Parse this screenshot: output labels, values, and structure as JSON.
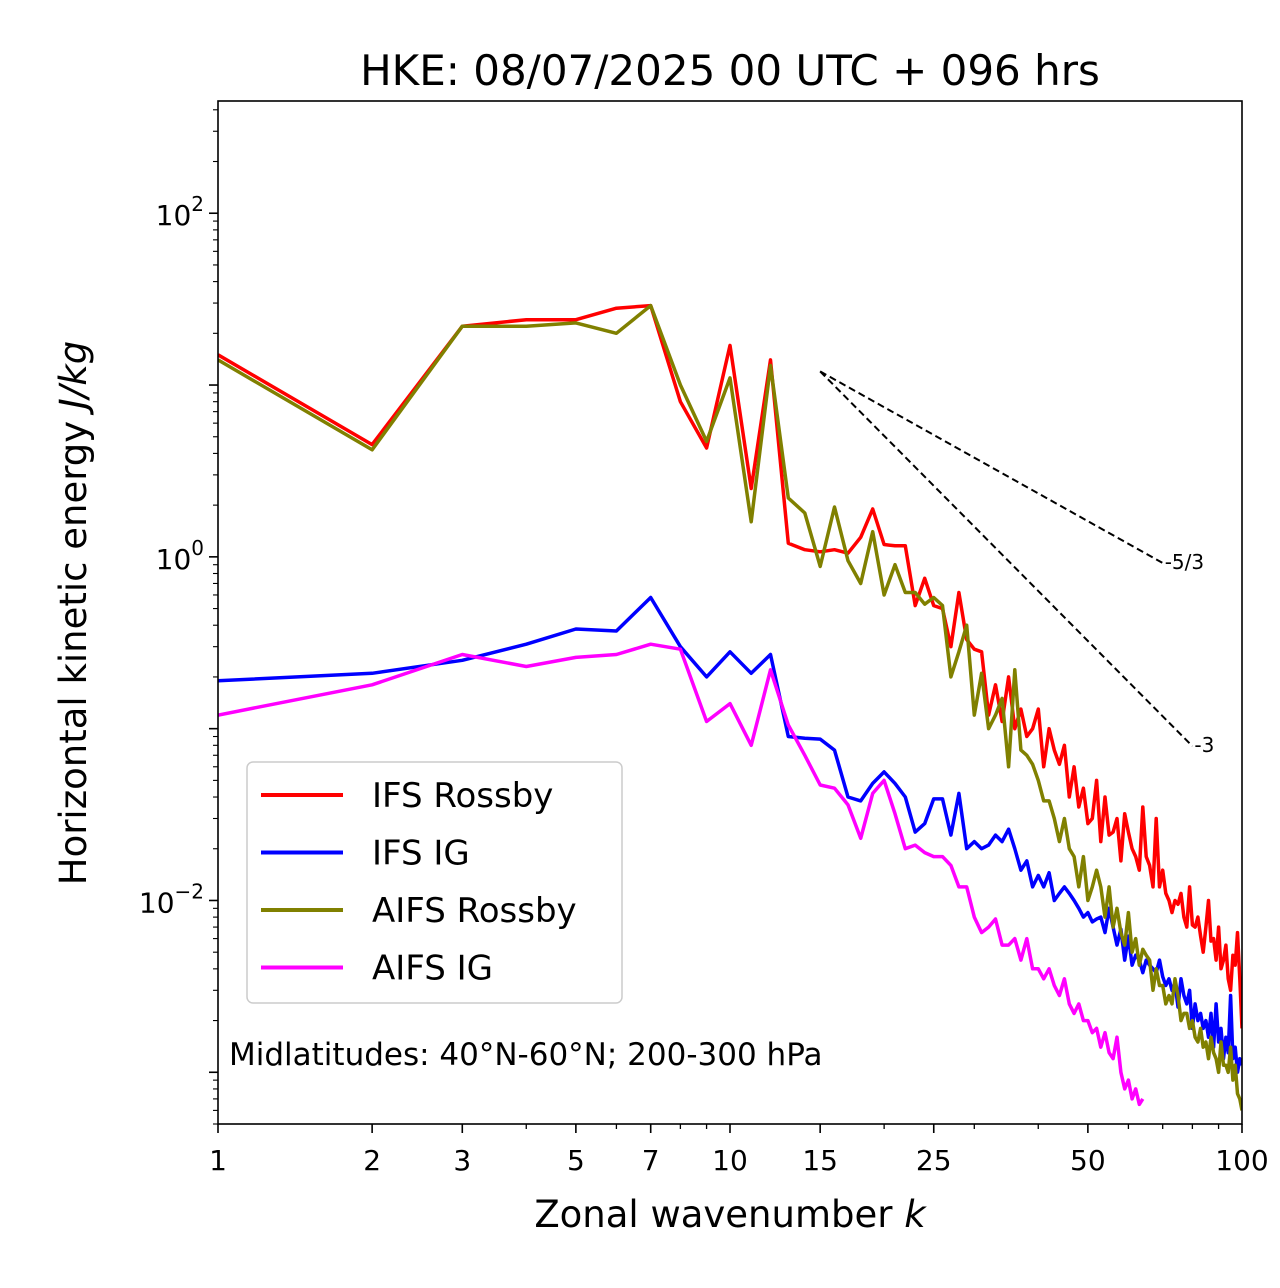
{
  "chart_data": {
    "type": "line",
    "title": "HKE: 08/07/2025 00 UTC + 096 hrs",
    "xlabel": "Zonal wavenumber",
    "xlabel_var": "k",
    "ylabel": "Horizontal kinetic energy",
    "ylabel_unit": "J/kg",
    "xscale": "log",
    "yscale": "log",
    "xlim": [
      1,
      100
    ],
    "ylim": [
      0.0005,
      450
    ],
    "xticks": [
      1,
      2,
      3,
      5,
      7,
      10,
      15,
      25,
      50,
      100
    ],
    "xtick_labels": [
      "1",
      "2",
      "3",
      "5",
      "7",
      "10",
      "15",
      "25",
      "50",
      "100"
    ],
    "yticks": [
      {
        "value": 100,
        "base": "10",
        "exp": "2"
      },
      {
        "value": 1,
        "base": "10",
        "exp": "0"
      },
      {
        "value": 0.01,
        "base": "10",
        "exp": "−2"
      }
    ],
    "grid": false,
    "legend_position": "lower-left",
    "annotation": "Midlatitudes: 40°N-60°N; 200-300 hPa",
    "reference_slopes": [
      {
        "label": "-5/3",
        "exponent": -1.6667,
        "x_start": 15,
        "x_end": 70,
        "y_start": 12.0
      },
      {
        "label": "-3",
        "exponent": -3,
        "x_start": 15,
        "x_end": 80,
        "y_start": 12.0
      }
    ],
    "series": [
      {
        "name": "IFS Rossby",
        "color": "#ff0000",
        "x": [
          1,
          2,
          3,
          4,
          5,
          6,
          7,
          8,
          9,
          10,
          11,
          12,
          13,
          14,
          15,
          16,
          17,
          18,
          19,
          20,
          21,
          22,
          23,
          24,
          25,
          26,
          27,
          28,
          29,
          30,
          31,
          32,
          33,
          34,
          35,
          36,
          37,
          38,
          39,
          40,
          41,
          42,
          43,
          44,
          45,
          46,
          47,
          48,
          49,
          50,
          51,
          52,
          53,
          54,
          55,
          56,
          57,
          58,
          59,
          60,
          61,
          62,
          63,
          64,
          65,
          66,
          67,
          68,
          69,
          70,
          71,
          72,
          73,
          74,
          75,
          76,
          77,
          78,
          79,
          80,
          81,
          82,
          83,
          84,
          85,
          86,
          87,
          88,
          89,
          90,
          91,
          92,
          93,
          94,
          95,
          96,
          97,
          98,
          99,
          100
        ],
        "y": [
          15,
          4.5,
          22,
          24,
          24,
          28,
          29,
          8,
          4.3,
          17,
          2.5,
          14,
          1.2,
          1.1,
          1.07,
          1.1,
          1.05,
          1.3,
          1.9,
          1.18,
          1.16,
          1.16,
          0.52,
          0.75,
          0.52,
          0.5,
          0.3,
          0.62,
          0.33,
          0.29,
          0.28,
          0.12,
          0.18,
          0.11,
          0.2,
          0.1,
          0.13,
          0.09,
          0.1,
          0.13,
          0.06,
          0.1,
          0.075,
          0.062,
          0.08,
          0.04,
          0.06,
          0.035,
          0.045,
          0.028,
          0.03,
          0.05,
          0.022,
          0.04,
          0.024,
          0.025,
          0.03,
          0.017,
          0.032,
          0.025,
          0.02,
          0.018,
          0.015,
          0.035,
          0.018,
          0.016,
          0.012,
          0.03,
          0.012,
          0.015,
          0.011,
          0.01,
          0.0085,
          0.01,
          0.0095,
          0.011,
          0.008,
          0.007,
          0.012,
          0.0072,
          0.007,
          0.008,
          0.0062,
          0.005,
          0.007,
          0.01,
          0.0058,
          0.006,
          0.0045,
          0.007,
          0.004,
          0.0045,
          0.0055,
          0.0035,
          0.003,
          0.0048,
          0.0042,
          0.0065,
          0.0035,
          0.0018
        ]
      },
      {
        "name": "IFS IG",
        "color": "#0000ff",
        "x": [
          1,
          2,
          3,
          4,
          5,
          6,
          7,
          8,
          9,
          10,
          11,
          12,
          13,
          14,
          15,
          16,
          17,
          18,
          19,
          20,
          21,
          22,
          23,
          24,
          25,
          26,
          27,
          28,
          29,
          30,
          31,
          32,
          33,
          34,
          35,
          36,
          37,
          38,
          39,
          40,
          41,
          42,
          43,
          44,
          45,
          46,
          47,
          48,
          49,
          50,
          51,
          52,
          53,
          54,
          55,
          56,
          57,
          58,
          59,
          60,
          61,
          62,
          63,
          64,
          65,
          66,
          67,
          68,
          69,
          70,
          71,
          72,
          73,
          74,
          75,
          76,
          77,
          78,
          79,
          80,
          81,
          82,
          83,
          84,
          85,
          86,
          87,
          88,
          89,
          90,
          91,
          92,
          93,
          94,
          95,
          96,
          97,
          98,
          99,
          100
        ],
        "y": [
          0.19,
          0.21,
          0.25,
          0.31,
          0.38,
          0.37,
          0.58,
          0.3,
          0.2,
          0.28,
          0.21,
          0.27,
          0.09,
          0.088,
          0.087,
          0.075,
          0.04,
          0.038,
          0.048,
          0.056,
          0.048,
          0.04,
          0.025,
          0.028,
          0.039,
          0.039,
          0.024,
          0.042,
          0.02,
          0.022,
          0.02,
          0.021,
          0.024,
          0.022,
          0.026,
          0.02,
          0.015,
          0.017,
          0.012,
          0.014,
          0.012,
          0.0145,
          0.01,
          0.011,
          0.012,
          0.011,
          0.01,
          0.009,
          0.008,
          0.0085,
          0.0075,
          0.0078,
          0.008,
          0.0065,
          0.009,
          0.007,
          0.0055,
          0.0068,
          0.0045,
          0.0062,
          0.0042,
          0.0048,
          0.0045,
          0.0038,
          0.0045,
          0.0042,
          0.004,
          0.0038,
          0.0045,
          0.0036,
          0.0032,
          0.0035,
          0.003,
          0.0033,
          0.0024,
          0.0035,
          0.0028,
          0.0025,
          0.003,
          0.0018,
          0.0025,
          0.002,
          0.0022,
          0.0018,
          0.002,
          0.0016,
          0.0022,
          0.0014,
          0.0025,
          0.0015,
          0.0018,
          0.0012,
          0.0016,
          0.0013,
          0.0028,
          0.0012,
          0.0014,
          0.001,
          0.0012,
          0.0011
        ]
      },
      {
        "name": "AIFS Rossby",
        "color": "#808000",
        "x": [
          1,
          2,
          3,
          4,
          5,
          6,
          7,
          8,
          9,
          10,
          11,
          12,
          13,
          14,
          15,
          16,
          17,
          18,
          19,
          20,
          21,
          22,
          23,
          24,
          25,
          26,
          27,
          28,
          29,
          30,
          31,
          32,
          33,
          34,
          35,
          36,
          37,
          38,
          39,
          40,
          41,
          42,
          43,
          44,
          45,
          46,
          47,
          48,
          49,
          50,
          51,
          52,
          53,
          54,
          55,
          56,
          57,
          58,
          59,
          60,
          61,
          62,
          63,
          64,
          65,
          66,
          67,
          68,
          69,
          70,
          71,
          72,
          73,
          74,
          75,
          76,
          77,
          78,
          79,
          80,
          81,
          82,
          83,
          84,
          85,
          86,
          87,
          88,
          89,
          90,
          91,
          92,
          93,
          94,
          95,
          96,
          97,
          98,
          99,
          100
        ],
        "y": [
          14,
          4.2,
          22,
          22,
          23,
          20,
          29,
          10,
          4.7,
          11,
          1.6,
          13,
          2.2,
          1.8,
          0.88,
          1.95,
          0.95,
          0.7,
          1.4,
          0.6,
          0.9,
          0.62,
          0.62,
          0.53,
          0.58,
          0.52,
          0.2,
          0.28,
          0.4,
          0.12,
          0.21,
          0.1,
          0.12,
          0.15,
          0.06,
          0.22,
          0.075,
          0.07,
          0.062,
          0.05,
          0.038,
          0.038,
          0.03,
          0.022,
          0.03,
          0.02,
          0.018,
          0.012,
          0.018,
          0.01,
          0.012,
          0.015,
          0.012,
          0.008,
          0.012,
          0.007,
          0.009,
          0.0065,
          0.0055,
          0.0085,
          0.005,
          0.006,
          0.0042,
          0.0052,
          0.0048,
          0.0045,
          0.003,
          0.004,
          0.0032,
          0.0032,
          0.0025,
          0.0028,
          0.0025,
          0.0035,
          0.0028,
          0.002,
          0.0022,
          0.0022,
          0.0018,
          0.002,
          0.0016,
          0.0015,
          0.0018,
          0.0014,
          0.0015,
          0.0012,
          0.0016,
          0.0013,
          0.0012,
          0.001,
          0.0015,
          0.0011,
          0.0011,
          0.001,
          0.0014,
          0.0009,
          0.0011,
          0.00075,
          0.0007,
          0.0006
        ]
      },
      {
        "name": "AIFS IG",
        "color": "#ff00ff",
        "x": [
          1,
          2,
          3,
          4,
          5,
          6,
          7,
          8,
          9,
          10,
          11,
          12,
          13,
          14,
          15,
          16,
          17,
          18,
          19,
          20,
          21,
          22,
          23,
          24,
          25,
          26,
          27,
          28,
          29,
          30,
          31,
          32,
          33,
          34,
          35,
          36,
          37,
          38,
          39,
          40,
          41,
          42,
          43,
          44,
          45,
          46,
          47,
          48,
          49,
          50,
          51,
          52,
          53,
          54,
          55,
          56,
          57,
          58,
          59,
          60,
          61,
          62,
          63,
          64
        ],
        "y": [
          0.12,
          0.18,
          0.27,
          0.23,
          0.26,
          0.27,
          0.31,
          0.29,
          0.11,
          0.14,
          0.08,
          0.22,
          0.105,
          0.07,
          0.047,
          0.045,
          0.036,
          0.023,
          0.042,
          0.05,
          0.032,
          0.02,
          0.021,
          0.019,
          0.018,
          0.018,
          0.016,
          0.012,
          0.012,
          0.008,
          0.0065,
          0.007,
          0.0078,
          0.0055,
          0.0055,
          0.006,
          0.0045,
          0.006,
          0.004,
          0.004,
          0.0035,
          0.004,
          0.0032,
          0.0028,
          0.0035,
          0.0025,
          0.0022,
          0.0025,
          0.002,
          0.002,
          0.0017,
          0.0018,
          0.0014,
          0.0017,
          0.0013,
          0.0012,
          0.0016,
          0.001,
          0.0008,
          0.0009,
          0.0007,
          0.0008,
          0.00065,
          0.0007
        ]
      }
    ]
  }
}
